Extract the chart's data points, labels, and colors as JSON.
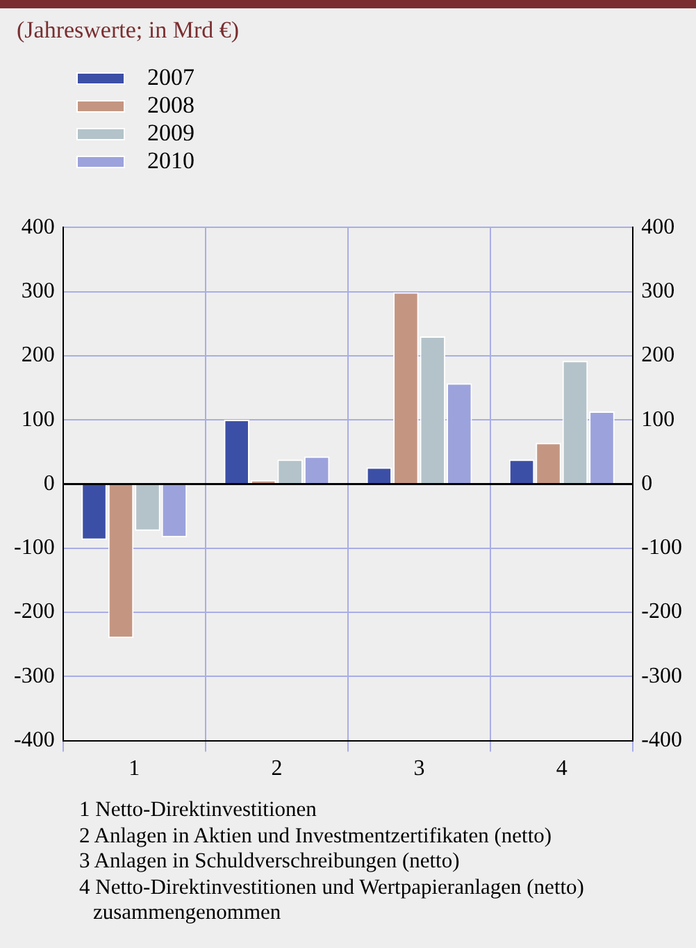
{
  "chart_data": {
    "type": "bar",
    "title": "(Jahreswerte; in Mrd €)",
    "categories": [
      "1",
      "2",
      "3",
      "4"
    ],
    "series": [
      {
        "name": "2007",
        "color": "#3c4fa6",
        "values": [
          -87,
          100,
          26,
          38
        ]
      },
      {
        "name": "2008",
        "color": "#c49682",
        "values": [
          -240,
          6,
          299,
          64
        ]
      },
      {
        "name": "2009",
        "color": "#b4c3c9",
        "values": [
          -73,
          38,
          230,
          192
        ]
      },
      {
        "name": "2010",
        "color": "#9ca2dc",
        "values": [
          -83,
          43,
          157,
          113
        ]
      }
    ],
    "ylim": [
      -400,
      400
    ],
    "yticks": [
      -400,
      -300,
      -200,
      -100,
      0,
      100,
      200,
      300,
      400
    ],
    "y2lim": [
      -400,
      400
    ],
    "y2ticks": [
      -400,
      -300,
      -200,
      -100,
      0,
      100,
      200,
      300,
      400
    ],
    "grid": true,
    "legend": "top left",
    "annotations": [
      "1 Netto-Direktinvestitionen",
      "2 Anlagen in Aktien und Investmentzertifikaten (netto)",
      "3 Anlagen in Schuldverschreibungen (netto)",
      "4 Netto-Direktinvestitionen und Wertpapieranlagen (netto) zusammengenommen"
    ]
  }
}
